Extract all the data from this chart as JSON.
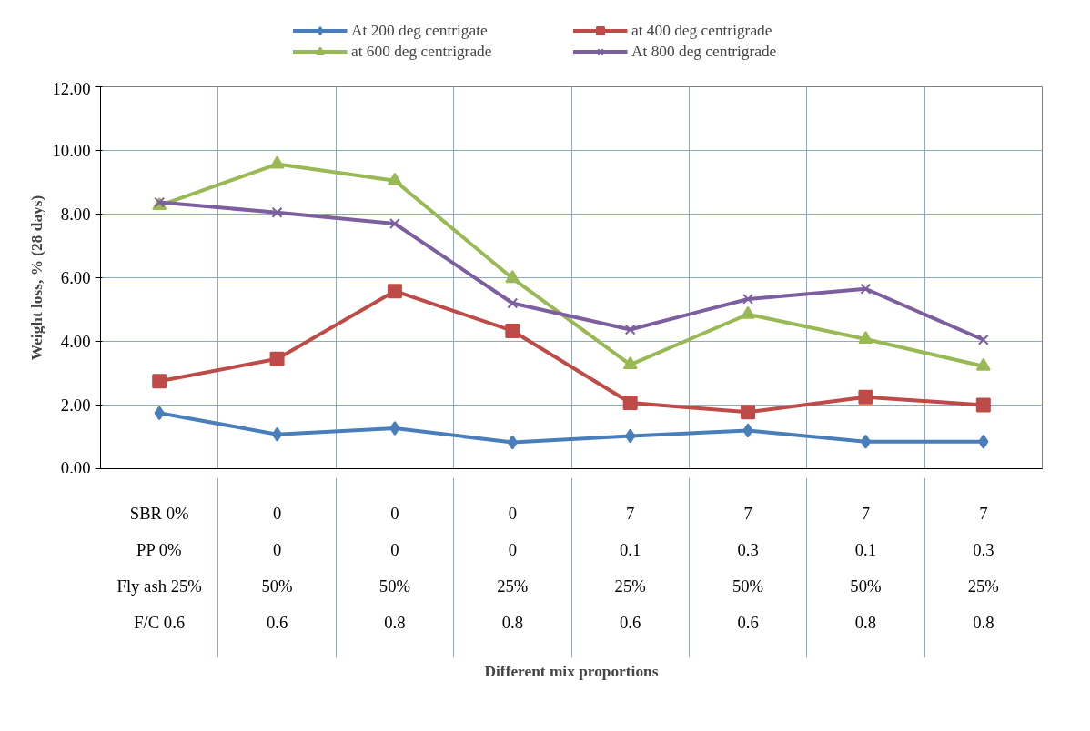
{
  "chart_data": {
    "type": "line",
    "xlabel": "Different mix proportions",
    "ylabel": "Weight loss, % (28 days)",
    "categories": [
      "SBR 0%\nPP 0%\nFly ash 25%\nF/C 0.6",
      "0\n0\n50%\n0.6",
      "0\n0\n50%\n0.8",
      "0\n0\n25%\n0.8",
      "7\n0.1\n25%\n0.6",
      "7\n0.3\n50%\n0.6",
      "7\n0.1\n50%\n0.8",
      "7\n0.3\n25%\n0.8"
    ],
    "series": [
      {
        "name": "At 200 deg centrigate",
        "color": "#4a7ebb",
        "marker": "diamond",
        "values": [
          1.75,
          1.08,
          1.27,
          0.83,
          1.03,
          1.2,
          0.85,
          0.85
        ]
      },
      {
        "name": "at 400 deg centrigrade",
        "color": "#be4b48",
        "marker": "square",
        "values": [
          2.75,
          3.45,
          5.58,
          4.33,
          2.07,
          1.78,
          2.25,
          2.0
        ]
      },
      {
        "name": "at 600 deg centrigrade",
        "color": "#98b954",
        "marker": "triangle",
        "values": [
          8.27,
          9.57,
          9.05,
          5.98,
          3.27,
          4.85,
          4.07,
          3.22
        ]
      },
      {
        "name": "At 800 deg centrigrade",
        "color": "#7d5fa0",
        "marker": "cross",
        "values": [
          8.37,
          8.05,
          7.7,
          5.2,
          4.37,
          5.33,
          5.65,
          4.05
        ]
      }
    ],
    "ylim": [
      0,
      12
    ],
    "yticks": [
      {
        "value": 0,
        "label": "0.00"
      },
      {
        "value": 2,
        "label": "2.00"
      },
      {
        "value": 4,
        "label": "4.00"
      },
      {
        "value": 6,
        "label": "6.00"
      },
      {
        "value": 8,
        "label": "8.00"
      },
      {
        "value": 10,
        "label": "10.00"
      },
      {
        "value": 12,
        "label": "12.00"
      }
    ],
    "grid": true,
    "legend": "top",
    "line_style": "solid"
  }
}
